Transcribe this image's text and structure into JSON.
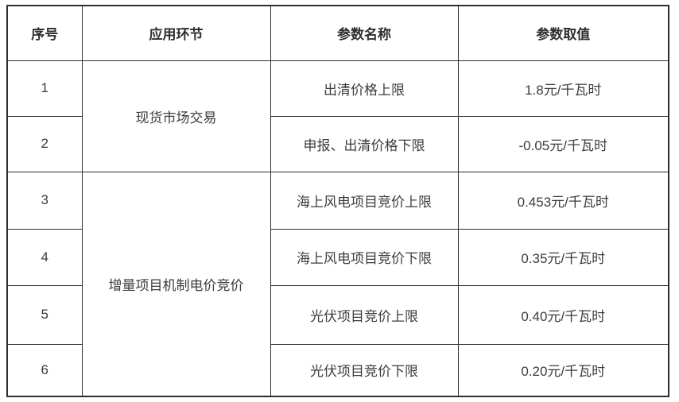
{
  "chart_data": {
    "type": "table",
    "columns": [
      "序号",
      "应用环节",
      "参数名称",
      "参数取值"
    ],
    "rows": [
      [
        "1",
        "现货市场交易",
        "出清价格上限",
        "1.8元/千瓦时"
      ],
      [
        "2",
        "现货市场交易",
        "申报、出清价格下限",
        "-0.05元/千瓦时"
      ],
      [
        "3",
        "增量项目机制电价竞价",
        "海上风电项目竞价上限",
        "0.453元/千瓦时"
      ],
      [
        "4",
        "增量项目机制电价竞价",
        "海上风电项目竞价下限",
        "0.35元/千瓦时"
      ],
      [
        "5",
        "增量项目机制电价竞价",
        "光伏项目竞价上限",
        "0.40元/千瓦时"
      ],
      [
        "6",
        "增量项目机制电价竞价",
        "光伏项目竞价下限",
        "0.20元/千瓦时"
      ]
    ],
    "merged_cells": [
      {
        "column": "应用环节",
        "rows": [
          1,
          2
        ],
        "value": "现货市场交易"
      },
      {
        "column": "应用环节",
        "rows": [
          3,
          6
        ],
        "value": "增量项目机制电价竞价"
      }
    ],
    "layout": {
      "grid": true,
      "header_row": true,
      "border_color": "#2e2e2e",
      "text_color": "#3c3c3c",
      "background_color": "#ffffff"
    }
  }
}
